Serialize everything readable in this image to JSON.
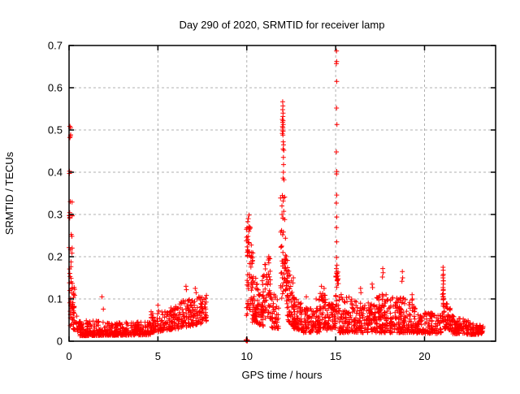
{
  "chart_data": {
    "type": "scatter",
    "title": "Day 290 of 2020, SRMTID for receiver lamp",
    "xlabel": "GPS time / hours",
    "ylabel": "SRMTID / TECUs",
    "xlim": [
      0,
      24
    ],
    "ylim": [
      0,
      0.7
    ],
    "xticks": [
      0,
      5,
      10,
      15,
      20
    ],
    "yticks": [
      0,
      0.1,
      0.2,
      0.3,
      0.4,
      0.5,
      0.6,
      0.7
    ],
    "grid": true,
    "legend": "none",
    "marker": {
      "symbol": "plus",
      "color": "#ff0000",
      "size": 7
    },
    "colors": {
      "axis": "#000000",
      "grid": "#b0b0b0",
      "background": "#ffffff",
      "text": "#000000"
    },
    "points": [
      [
        1.85,
        0.105
      ],
      [
        1.93,
        0.076
      ],
      [
        5.0,
        0.085
      ],
      [
        6.58,
        0.13
      ],
      [
        6.6,
        0.122
      ],
      [
        7.1,
        0.125
      ],
      [
        7.15,
        0.115
      ],
      [
        7.3,
        0.105
      ],
      [
        12.62,
        0.15
      ],
      [
        12.6,
        0.138
      ],
      [
        13.35,
        0.105
      ],
      [
        13.9,
        0.1
      ],
      [
        14.2,
        0.13
      ],
      [
        14.35,
        0.125
      ],
      [
        16.4,
        0.125
      ],
      [
        16.42,
        0.115
      ],
      [
        17.05,
        0.135
      ],
      [
        17.08,
        0.127
      ],
      [
        17.65,
        0.172
      ],
      [
        17.67,
        0.162
      ],
      [
        17.63,
        0.152
      ],
      [
        18.75,
        0.165
      ],
      [
        18.77,
        0.15
      ],
      [
        18.73,
        0.142
      ],
      [
        19.3,
        0.11
      ],
      [
        19.32,
        0.1
      ],
      [
        21.04,
        0.175
      ],
      [
        21.05,
        0.168
      ],
      [
        21.06,
        0.158
      ],
      [
        21.04,
        0.15
      ],
      [
        21.05,
        0.143
      ],
      [
        21.06,
        0.135
      ],
      [
        21.04,
        0.127
      ],
      [
        21.05,
        0.12
      ],
      [
        21.06,
        0.112
      ],
      [
        21.04,
        0.105
      ],
      [
        21.05,
        0.098
      ],
      [
        21.06,
        0.09
      ],
      [
        12.02,
        0.567
      ],
      [
        12.03,
        0.557
      ],
      [
        12.02,
        0.548
      ],
      [
        12.04,
        0.54
      ],
      [
        12.03,
        0.532
      ],
      [
        12.0,
        0.525
      ],
      [
        12.04,
        0.522
      ],
      [
        12.02,
        0.518
      ],
      [
        12.05,
        0.513
      ],
      [
        12.01,
        0.508
      ],
      [
        12.03,
        0.505
      ],
      [
        12.02,
        0.5
      ],
      [
        12.04,
        0.497
      ],
      [
        12.0,
        0.492
      ],
      [
        12.03,
        0.488
      ],
      [
        12.05,
        0.472
      ],
      [
        12.07,
        0.465
      ],
      [
        12.04,
        0.455
      ],
      [
        12.08,
        0.452
      ],
      [
        12.06,
        0.435
      ],
      [
        12.07,
        0.418
      ],
      [
        12.06,
        0.4
      ],
      [
        12.04,
        0.386
      ],
      [
        12.09,
        0.382
      ],
      [
        12.0,
        0.345
      ],
      [
        12.05,
        0.332
      ],
      [
        11.98,
        0.3
      ],
      [
        12.04,
        0.292
      ],
      [
        11.96,
        0.262
      ],
      [
        12.02,
        0.252
      ],
      [
        11.97,
        0.225
      ],
      [
        12.03,
        0.21
      ],
      [
        11.98,
        0.19
      ],
      [
        12.02,
        0.178
      ],
      [
        11.97,
        0.162
      ],
      [
        12.0,
        0.15
      ],
      [
        15.05,
        0.687
      ],
      [
        15.06,
        0.662
      ],
      [
        15.04,
        0.657
      ],
      [
        15.06,
        0.615
      ],
      [
        15.05,
        0.552
      ],
      [
        15.07,
        0.513
      ],
      [
        15.04,
        0.448
      ],
      [
        15.06,
        0.402
      ],
      [
        15.05,
        0.396
      ],
      [
        15.06,
        0.346
      ],
      [
        15.04,
        0.327
      ],
      [
        15.06,
        0.294
      ],
      [
        15.05,
        0.269
      ],
      [
        15.06,
        0.235
      ],
      [
        15.05,
        0.198
      ],
      [
        15.07,
        0.18
      ],
      [
        15.04,
        0.172
      ],
      [
        15.06,
        0.164
      ]
    ],
    "density_bands": {
      "band_format": "[x_start, x_end, n_points, ymin_at_start, ymax_at_start, ymin_at_end, ymax_at_end, bias_toward_ymin]",
      "bands": [
        [
          0.0,
          0.12,
          5,
          0.475,
          0.51,
          0.475,
          0.51,
          1
        ],
        [
          0.0,
          0.1,
          2,
          0.395,
          0.408,
          0.395,
          0.408,
          1
        ],
        [
          0.0,
          0.18,
          9,
          0.28,
          0.335,
          0.28,
          0.335,
          1
        ],
        [
          0.0,
          0.2,
          10,
          0.16,
          0.28,
          0.16,
          0.27,
          1
        ],
        [
          0.0,
          0.35,
          22,
          0.08,
          0.165,
          0.06,
          0.12,
          1
        ],
        [
          0.05,
          0.7,
          55,
          0.03,
          0.11,
          0.018,
          0.04,
          1.3
        ],
        [
          0.6,
          4.6,
          400,
          0.013,
          0.05,
          0.015,
          0.045,
          2.2
        ],
        [
          4.6,
          5.35,
          70,
          0.02,
          0.075,
          0.025,
          0.07,
          1.6
        ],
        [
          5.35,
          6.3,
          85,
          0.025,
          0.075,
          0.03,
          0.09,
          1.5
        ],
        [
          6.3,
          7.75,
          140,
          0.03,
          0.1,
          0.045,
          0.11,
          1.4
        ],
        [
          9.96,
          10.04,
          10,
          0.0,
          0.004,
          0.0,
          0.004,
          1
        ],
        [
          9.97,
          10.1,
          22,
          0.04,
          0.34,
          0.05,
          0.34,
          0.8
        ],
        [
          10.05,
          10.35,
          45,
          0.08,
          0.33,
          0.06,
          0.22,
          1.2
        ],
        [
          10.3,
          10.95,
          80,
          0.045,
          0.2,
          0.035,
          0.075,
          1.4
        ],
        [
          10.85,
          11.35,
          60,
          0.05,
          0.175,
          0.055,
          0.215,
          1.1
        ],
        [
          11.3,
          11.8,
          45,
          0.03,
          0.13,
          0.03,
          0.095,
          1.3
        ],
        [
          11.9,
          12.2,
          26,
          0.1,
          0.35,
          0.1,
          0.35,
          1
        ],
        [
          12.1,
          12.33,
          28,
          0.085,
          0.22,
          0.085,
          0.2,
          1
        ],
        [
          12.25,
          12.7,
          55,
          0.045,
          0.21,
          0.032,
          0.095,
          1.3
        ],
        [
          12.6,
          13.1,
          60,
          0.03,
          0.105,
          0.025,
          0.09,
          1.4
        ],
        [
          13.05,
          14.1,
          110,
          0.02,
          0.08,
          0.02,
          0.08,
          1.5
        ],
        [
          14.05,
          14.45,
          55,
          0.03,
          0.12,
          0.03,
          0.11,
          1.2
        ],
        [
          14.4,
          15.0,
          70,
          0.025,
          0.095,
          0.03,
          0.09,
          1.4
        ],
        [
          15.0,
          15.18,
          26,
          0.045,
          0.165,
          0.045,
          0.165,
          1
        ],
        [
          15.15,
          16.3,
          130,
          0.02,
          0.125,
          0.02,
          0.095,
          1.5
        ],
        [
          16.3,
          17.3,
          110,
          0.02,
          0.095,
          0.02,
          0.095,
          1.5
        ],
        [
          17.3,
          19.5,
          260,
          0.02,
          0.115,
          0.02,
          0.1,
          1.6
        ],
        [
          19.5,
          20.95,
          130,
          0.018,
          0.07,
          0.018,
          0.065,
          1.5
        ],
        [
          21.0,
          21.1,
          14,
          0.04,
          0.16,
          0.04,
          0.155,
          1
        ],
        [
          21.05,
          21.6,
          60,
          0.03,
          0.1,
          0.025,
          0.075,
          1.4
        ],
        [
          21.6,
          23.3,
          160,
          0.016,
          0.06,
          0.016,
          0.038,
          1.5
        ]
      ]
    }
  }
}
